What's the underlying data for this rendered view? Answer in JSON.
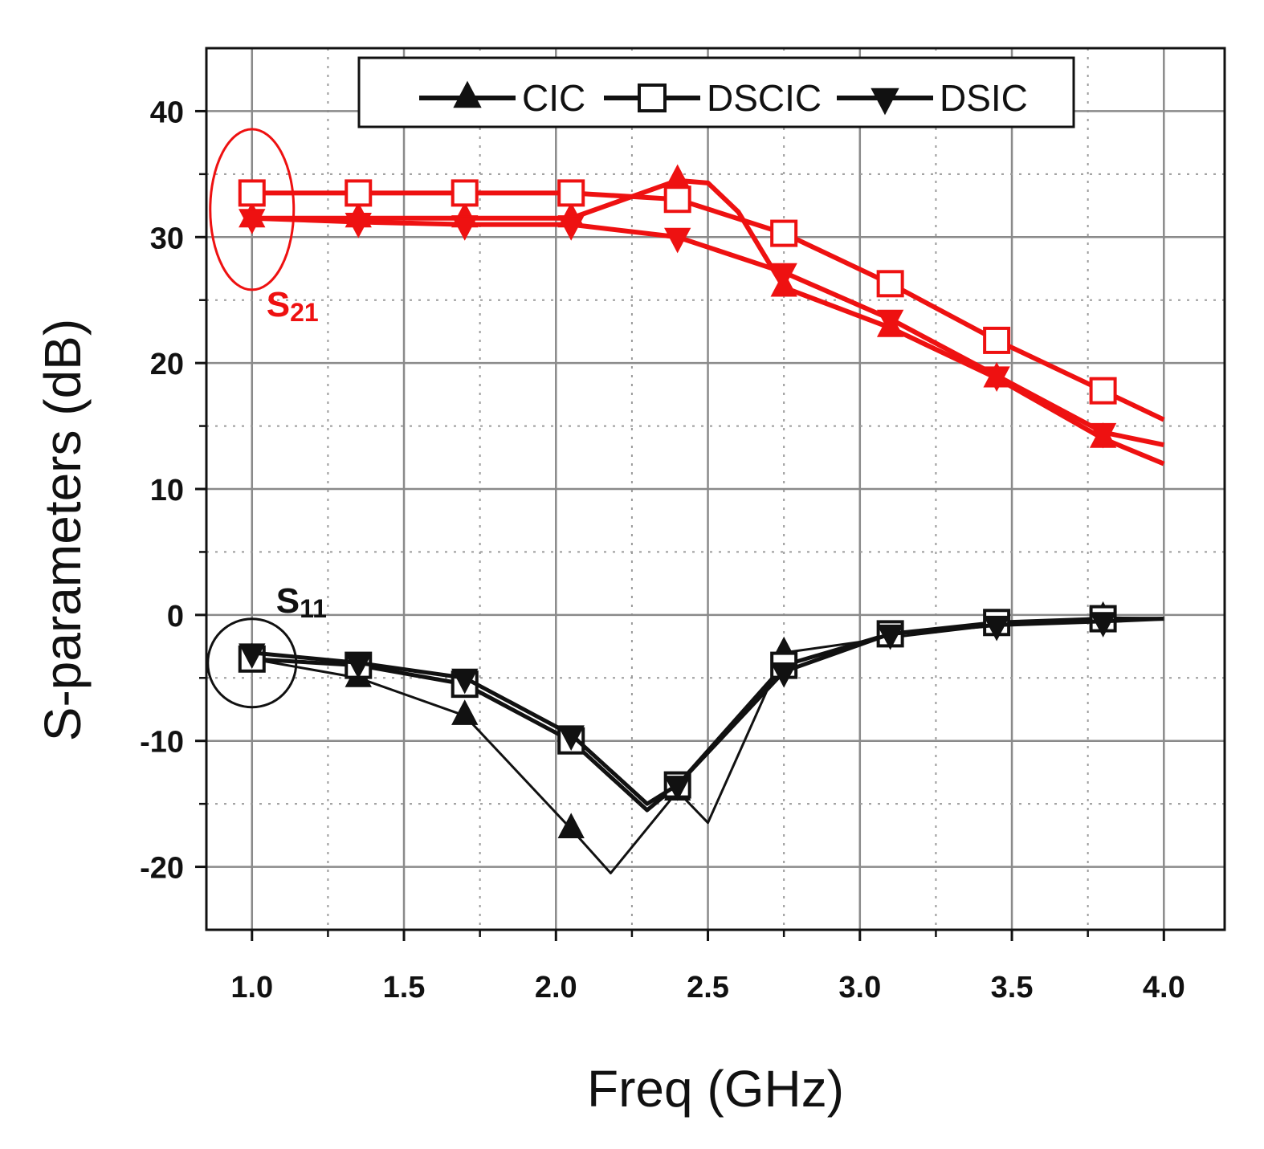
{
  "chart_data": {
    "type": "line",
    "title": "",
    "xlabel": "Freq (GHz)",
    "ylabel": "S-parameters (dB)",
    "xlim": [
      0.85,
      4.2
    ],
    "ylim": [
      -25,
      45
    ],
    "xticks": [
      "1.0",
      "1.5",
      "2.0",
      "2.5",
      "3.0",
      "3.5",
      "4.0"
    ],
    "xtick_values": [
      1.0,
      1.5,
      2.0,
      2.5,
      3.0,
      3.5,
      4.0
    ],
    "yticks": [
      "-20",
      "-10",
      "0",
      "10",
      "20",
      "30",
      "40"
    ],
    "ytick_values": [
      -20,
      -10,
      0,
      10,
      20,
      30,
      40
    ],
    "grid": true,
    "legend_position": "top",
    "legend": [
      {
        "name": "CIC",
        "marker": "triangle-up"
      },
      {
        "name": "DSCIC",
        "marker": "square-open"
      },
      {
        "name": "DSIC",
        "marker": "triangle-down"
      }
    ],
    "marker_x": [
      1.0,
      1.35,
      1.7,
      2.05,
      2.4,
      2.75,
      3.1,
      3.45,
      3.8
    ],
    "series": [
      {
        "name": "CIC",
        "group": "S21",
        "color": "#ee1111",
        "marker": "triangle-up",
        "x": [
          1.0,
          1.35,
          1.7,
          2.05,
          2.4,
          2.5,
          2.6,
          2.75,
          3.1,
          3.45,
          3.8,
          4.0
        ],
        "y": [
          31.5,
          31.5,
          31.5,
          31.5,
          34.5,
          34.3,
          32.0,
          26.0,
          22.8,
          18.8,
          14.0,
          12.0
        ]
      },
      {
        "name": "DSCIC",
        "group": "S21",
        "color": "#ee1111",
        "marker": "square-open",
        "x": [
          1.0,
          1.35,
          1.7,
          2.05,
          2.4,
          2.75,
          3.1,
          3.45,
          3.8,
          4.0
        ],
        "y": [
          33.5,
          33.5,
          33.5,
          33.5,
          33.0,
          30.3,
          26.3,
          21.8,
          17.8,
          15.5
        ]
      },
      {
        "name": "DSIC",
        "group": "S21",
        "color": "#ee1111",
        "marker": "triangle-down",
        "x": [
          1.0,
          1.35,
          1.7,
          2.05,
          2.4,
          2.75,
          3.1,
          3.45,
          3.8,
          4.0
        ],
        "y": [
          31.5,
          31.2,
          31.0,
          31.0,
          30.0,
          27.2,
          23.5,
          19.0,
          14.5,
          13.5
        ]
      },
      {
        "name": "CIC",
        "group": "S11",
        "color": "#111111",
        "marker": "triangle-up",
        "x": [
          1.0,
          1.35,
          1.7,
          2.05,
          2.18,
          2.4,
          2.5,
          2.75,
          3.1,
          3.45,
          3.8,
          4.0
        ],
        "y": [
          -3.5,
          -5.0,
          -8.0,
          -17.0,
          -20.5,
          -14.0,
          -16.5,
          -3.0,
          -1.8,
          -0.8,
          -0.2,
          -0.3
        ]
      },
      {
        "name": "DSCIC",
        "group": "S11",
        "color": "#111111",
        "marker": "square-open",
        "x": [
          1.0,
          1.35,
          1.7,
          2.05,
          2.3,
          2.4,
          2.75,
          3.1,
          3.45,
          3.8,
          4.0
        ],
        "y": [
          -3.5,
          -4.0,
          -5.5,
          -10.0,
          -15.5,
          -13.5,
          -4.0,
          -1.5,
          -0.6,
          -0.3,
          -0.3
        ]
      },
      {
        "name": "DSIC",
        "group": "S11",
        "color": "#111111",
        "marker": "triangle-down",
        "x": [
          1.0,
          1.35,
          1.7,
          2.05,
          2.3,
          2.4,
          2.75,
          3.1,
          3.45,
          3.8,
          4.0
        ],
        "y": [
          -3.0,
          -3.8,
          -5.0,
          -9.5,
          -15.0,
          -13.5,
          -4.5,
          -1.5,
          -0.8,
          -0.5,
          -0.3
        ]
      }
    ],
    "annotations": [
      {
        "name": "S21",
        "base": "S",
        "sub": "21",
        "color": "#ee1111",
        "circled_x": 1.0,
        "circled_y": 32.0
      },
      {
        "name": "S11",
        "base": "S",
        "sub": "11",
        "color": "#111111",
        "circled_x": 1.0,
        "circled_y": -3.5
      }
    ]
  }
}
